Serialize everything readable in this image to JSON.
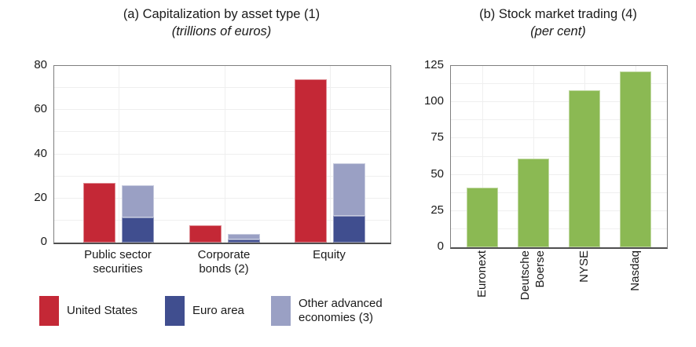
{
  "figure": {
    "background_color": "#ffffff",
    "text_color": "#1a1a1a",
    "grid_color": "#efefef",
    "axis_border_color": "#7f7f7f"
  },
  "panel_a": {
    "title": "(a) Capitalization by asset type (1)",
    "subtitle": "(trillions of euros)",
    "legend": [
      {
        "label": "United States",
        "label_display": "United States",
        "color": "#c42836"
      },
      {
        "label": "Euro area",
        "label_display": "Euro area",
        "color": "#404e8f"
      },
      {
        "label": "Other advanced economies (3)",
        "label_display": "Other advanced\neconomies (3)",
        "color": "#9aa0c4"
      }
    ]
  },
  "panel_b": {
    "title": "(b) Stock market trading (4)",
    "subtitle": "(per cent)"
  },
  "chart_data": [
    {
      "type": "bar",
      "title": "(a) Capitalization by asset type (1)",
      "subtitle": "(trillions of euros)",
      "unit": "trillions of euros",
      "categories": [
        "Public sector securities",
        "Corporate bonds (2)",
        "Equity"
      ],
      "categories_display": [
        "Public sector\nsecurities",
        "Corporate\nbonds (2)",
        "Equity"
      ],
      "bar_arrangement": "United States standalone bar; Euro area and Other advanced economies stacked in adjacent bar",
      "series": [
        {
          "name": "United States",
          "color": "#c42836",
          "stack": "us",
          "values": [
            27,
            8,
            74
          ]
        },
        {
          "name": "Euro area",
          "color": "#404e8f",
          "stack": "other",
          "values": [
            11.5,
            1.5,
            12
          ]
        },
        {
          "name": "Other advanced economies (3)",
          "color": "#9aa0c4",
          "stack": "other",
          "values": [
            14.5,
            2.5,
            24
          ]
        }
      ],
      "ylim": [
        0,
        80
      ],
      "yticks": [
        0,
        20,
        40,
        60,
        80
      ],
      "grid": true,
      "legend_position": "bottom"
    },
    {
      "type": "bar",
      "title": "(b) Stock market trading (4)",
      "subtitle": "(per cent)",
      "unit": "per cent",
      "categories": [
        "Euronext",
        "Deutsche Boerse",
        "NYSE",
        "Nasdaq"
      ],
      "categories_display": [
        "Euronext",
        "Deutsche\nBoerse",
        "NYSE",
        "Nasdaq"
      ],
      "values": [
        41,
        61,
        108,
        121
      ],
      "color": "#8bb953",
      "ylim": [
        0,
        125
      ],
      "yticks": [
        0,
        25,
        50,
        75,
        100,
        125
      ],
      "grid": true,
      "x_label_rotation": 90
    }
  ]
}
